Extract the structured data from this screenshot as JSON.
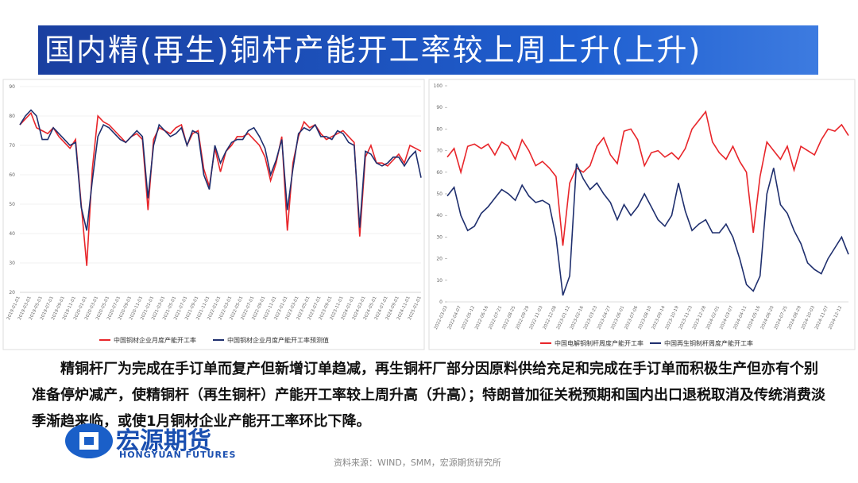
{
  "header": {
    "title": "国内精(再生)铜杆产能开工率较上周上升(上升)"
  },
  "body": {
    "paragraph": "精铜杆厂为完成在手订单而复产但新增订单趋减，再生铜杆厂部分因原料供给充足和完成在手订单而积极生产但亦有个别准备停炉减产，使精铜杆（再生铜杆）产能开工率较上周升高（升高）；特朗普加征关税预期和国内出口退税取消及传统消费淡季渐趋来临，或使1月铜材企业产能开工率环比下降。"
  },
  "logo": {
    "name": "宏源期货",
    "english": "HONGYUAN FUTURES"
  },
  "source": "资料来源：WIND，SMM，宏源期货研究所",
  "chart_data": [
    {
      "type": "line",
      "ylim": [
        20,
        90
      ],
      "yticks": [
        20,
        30,
        40,
        50,
        60,
        70,
        80,
        90
      ],
      "grid": true,
      "categories": [
        "2019-01-01",
        null,
        "2019-03-01",
        null,
        "2019-05-01",
        null,
        "2019-07-01",
        null,
        "2019-09-01",
        null,
        "2019-11-01",
        null,
        "2020-01-01",
        null,
        "2020-03-01",
        null,
        "2020-05-01",
        null,
        "2020-07-01",
        null,
        "2020-09-01",
        null,
        "2020-11-01",
        null,
        "2021-01-01",
        null,
        "2021-03-01",
        null,
        "2021-05-01",
        null,
        "2021-07-01",
        null,
        "2021-09-01",
        null,
        "2021-11-01",
        null,
        "2022-01-01",
        null,
        "2022-03-01",
        null,
        "2022-05-01",
        null,
        "2022-07-01",
        null,
        "2022-09-01",
        null,
        "2022-11-01",
        null,
        "2023-01-01",
        null,
        "2023-03-01",
        null,
        "2023-05-01",
        null,
        "2023-07-01",
        null,
        "2023-09-01",
        null,
        "2023-11-01",
        null,
        "2024-01-01",
        null,
        "2024-03-01",
        null,
        "2024-05-01",
        null,
        "2024-07-01",
        null,
        "2024-09-01",
        null,
        "2024-11-01",
        null,
        "2025-01-01"
      ],
      "series": [
        {
          "name": "中国铜材企业月度产能开工率",
          "color": "#e8252a",
          "values": [
            77,
            79,
            81,
            76,
            75,
            74,
            76,
            73,
            71,
            69,
            72,
            50,
            29,
            62,
            80,
            78,
            77,
            75,
            73,
            71,
            73,
            74,
            72,
            48,
            72,
            76,
            75,
            74,
            76,
            77,
            70,
            74,
            75,
            62,
            56,
            69,
            61,
            68,
            70,
            73,
            73,
            74,
            72,
            70,
            66,
            58,
            64,
            73,
            41,
            64,
            73,
            78,
            76,
            77,
            74,
            72,
            73,
            74,
            75,
            73,
            71,
            39,
            66,
            70,
            64,
            64,
            63,
            65,
            67,
            64,
            70,
            69,
            68
          ]
        },
        {
          "name": "中国铜材企业月度产能开工率预测值",
          "color": "#1f2f6e",
          "values": [
            77,
            80,
            82,
            80,
            72,
            72,
            76,
            74,
            72,
            70,
            71,
            49,
            41,
            58,
            73,
            77,
            76,
            74,
            72,
            71,
            73,
            75,
            73,
            52,
            70,
            77,
            75,
            73,
            74,
            76,
            70,
            75,
            74,
            60,
            55,
            70,
            64,
            68,
            71,
            72,
            72,
            75,
            76,
            73,
            69,
            60,
            65,
            72,
            48,
            62,
            74,
            76,
            75,
            77,
            73,
            73,
            72,
            75,
            74,
            71,
            70,
            42,
            68,
            67,
            64,
            63,
            64,
            66,
            66,
            63,
            66,
            68,
            59
          ]
        }
      ]
    },
    {
      "type": "line",
      "ylim": [
        0,
        100
      ],
      "yticks": [
        0,
        10,
        20,
        30,
        40,
        50,
        60,
        70,
        80,
        90,
        100
      ],
      "grid": false,
      "categories": [
        "2022-03-03",
        null,
        "2022-04-07",
        null,
        "2022-05-12",
        null,
        "2022-06-16",
        null,
        "2022-07-21",
        null,
        "2022-08-25",
        null,
        "2022-09-29",
        null,
        "2022-11-03",
        null,
        "2022-12-08",
        null,
        "2023-01-12",
        null,
        "2023-02-16",
        null,
        "2023-03-23",
        null,
        "2023-04-27",
        null,
        "2023-06-01",
        null,
        "2023-07-06",
        null,
        "2023-08-10",
        null,
        "2023-09-14",
        null,
        "2023-10-19",
        null,
        "2023-11-23",
        null,
        "2023-12-28",
        null,
        "2024-02-01",
        null,
        "2024-03-07",
        null,
        "2024-04-11",
        null,
        "2024-05-16",
        null,
        "2024-06-20",
        null,
        "2024-07-25",
        null,
        "2024-08-29",
        null,
        "2024-10-03",
        null,
        "2024-11-07",
        null,
        "2024-12-12",
        null
      ],
      "series": [
        {
          "name": "中国电解铜制杆周度产能开工率",
          "color": "#e8252a",
          "values": [
            67,
            71,
            60,
            72,
            73,
            71,
            73,
            68,
            74,
            72,
            66,
            75,
            70,
            63,
            65,
            62,
            58,
            26,
            55,
            62,
            60,
            63,
            72,
            76,
            68,
            64,
            79,
            80,
            75,
            63,
            69,
            70,
            67,
            69,
            66,
            71,
            80,
            84,
            88,
            74,
            69,
            66,
            72,
            65,
            60,
            32,
            58,
            74,
            70,
            66,
            72,
            61,
            72,
            70,
            68,
            75,
            80,
            79,
            82,
            77
          ]
        },
        {
          "name": "中国再生铜制杆周度产能开工率",
          "color": "#1f2f6e",
          "values": [
            49,
            53,
            40,
            33,
            35,
            41,
            44,
            48,
            52,
            50,
            47,
            54,
            49,
            46,
            47,
            45,
            30,
            3,
            12,
            64,
            57,
            52,
            55,
            50,
            46,
            38,
            45,
            40,
            44,
            50,
            44,
            38,
            35,
            40,
            55,
            42,
            33,
            36,
            38,
            32,
            32,
            36,
            30,
            20,
            8,
            5,
            12,
            50,
            62,
            45,
            41,
            33,
            27,
            18,
            15,
            13,
            20,
            25,
            30,
            22
          ]
        }
      ]
    }
  ]
}
